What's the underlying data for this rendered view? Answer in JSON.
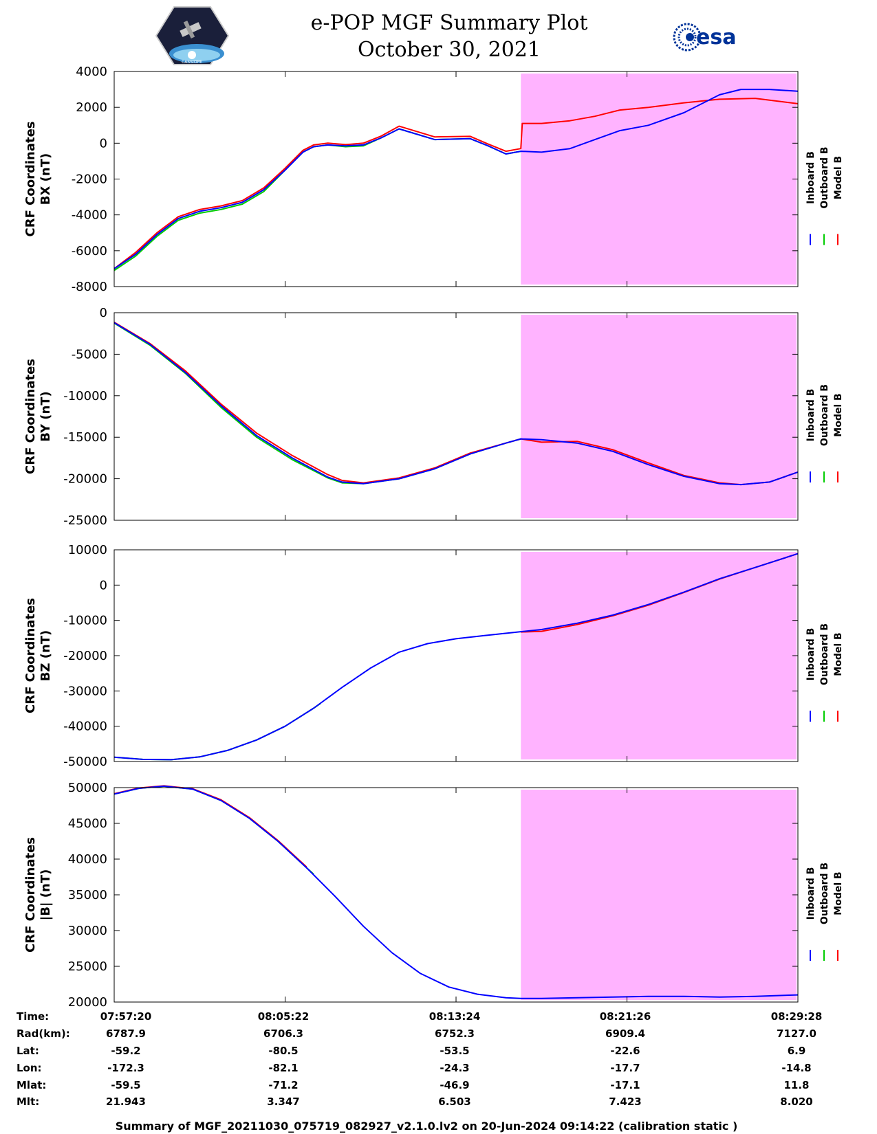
{
  "header": {
    "title": "e-POP MGF Summary Plot",
    "date": "October 30, 2021",
    "logo_left_text": "CASSIOPE",
    "logo_right_text": "esa"
  },
  "colors": {
    "inboard": "#0000ff",
    "outboard": "#00cc00",
    "model": "#ff0000",
    "calibration_shade": "#ffb3ff"
  },
  "chart_data": [
    {
      "type": "line",
      "ylabel": [
        "CRF Coordinates",
        "BX (nT)"
      ],
      "ylim": [
        -8000,
        4000
      ],
      "yticks": [
        4000,
        2000,
        0,
        -2000,
        -4000,
        -6000,
        -8000
      ],
      "xlim": [
        0,
        1920
      ],
      "shaded_x": [
        1142,
        1920
      ],
      "legend": [
        "Inboard B",
        "Outboard B",
        "Model B"
      ],
      "series": [
        {
          "name": "Inboard B",
          "x": [
            0,
            60,
            120,
            180,
            240,
            300,
            360,
            420,
            480,
            530,
            560,
            600,
            650,
            700,
            750,
            800,
            900,
            1000,
            1050,
            1100,
            1142,
            1200,
            1280,
            1350,
            1420,
            1500,
            1600,
            1700,
            1760,
            1840,
            1920
          ],
          "y": [
            -7000,
            -6200,
            -5100,
            -4200,
            -3800,
            -3600,
            -3300,
            -2600,
            -1500,
            -500,
            -200,
            -100,
            -150,
            -100,
            300,
            800,
            200,
            250,
            -150,
            -600,
            -450,
            -500,
            -300,
            200,
            700,
            1000,
            1700,
            2700,
            3000,
            3000,
            2900
          ]
        },
        {
          "name": "Outboard B",
          "x": [
            0,
            60,
            120,
            180,
            240,
            300,
            360,
            420,
            480,
            530,
            560,
            600,
            650,
            700,
            750,
            800,
            900,
            1000,
            1050,
            1100,
            1142
          ],
          "y": [
            -7100,
            -6300,
            -5200,
            -4300,
            -3900,
            -3700,
            -3400,
            -2700,
            -1500,
            -500,
            -200,
            -100,
            -200,
            -150,
            300,
            800,
            200,
            250,
            -150,
            -600,
            -450
          ]
        },
        {
          "name": "Model B",
          "x": [
            0,
            60,
            120,
            180,
            240,
            300,
            360,
            420,
            480,
            530,
            560,
            600,
            650,
            700,
            750,
            800,
            900,
            1000,
            1050,
            1100,
            1142,
            1146,
            1200,
            1280,
            1350,
            1420,
            1500,
            1600,
            1700,
            1800,
            1920
          ],
          "y": [
            -7000,
            -6100,
            -5000,
            -4100,
            -3700,
            -3500,
            -3200,
            -2500,
            -1400,
            -400,
            -100,
            0,
            -80,
            0,
            400,
            950,
            350,
            380,
            -50,
            -450,
            -300,
            1100,
            1100,
            1250,
            1500,
            1850,
            2000,
            2250,
            2450,
            2500,
            2200
          ]
        }
      ]
    },
    {
      "type": "line",
      "ylabel": [
        "CRF Coordinates",
        "BY (nT)"
      ],
      "ylim": [
        -25000,
        0
      ],
      "yticks": [
        0,
        -5000,
        -10000,
        -15000,
        -20000,
        -25000
      ],
      "xlim": [
        0,
        1920
      ],
      "shaded_x": [
        1142,
        1920
      ],
      "legend": [
        "Inboard B",
        "Outboard B",
        "Model B"
      ],
      "series": [
        {
          "name": "Inboard B",
          "x": [
            0,
            100,
            200,
            300,
            400,
            500,
            600,
            640,
            700,
            800,
            900,
            1000,
            1100,
            1142,
            1200,
            1300,
            1400,
            1500,
            1600,
            1700,
            1760,
            1840,
            1920
          ],
          "y": [
            -1200,
            -3800,
            -7200,
            -11200,
            -14800,
            -17500,
            -19800,
            -20400,
            -20600,
            -20000,
            -18800,
            -17000,
            -15700,
            -15200,
            -15300,
            -15700,
            -16700,
            -18300,
            -19700,
            -20600,
            -20700,
            -20400,
            -19200
          ]
        },
        {
          "name": "Outboard B",
          "x": [
            0,
            100,
            200,
            300,
            400,
            500,
            600,
            640,
            700,
            800,
            900,
            1000,
            1100,
            1142
          ],
          "y": [
            -1250,
            -3900,
            -7300,
            -11400,
            -15000,
            -17700,
            -19900,
            -20500,
            -20600,
            -20000,
            -18800,
            -17000,
            -15700,
            -15200
          ]
        },
        {
          "name": "Model B",
          "x": [
            0,
            100,
            200,
            300,
            400,
            500,
            600,
            640,
            700,
            800,
            900,
            1000,
            1100,
            1142,
            1200,
            1300,
            1400,
            1500,
            1600,
            1700,
            1760,
            1840,
            1920
          ],
          "y": [
            -1150,
            -3700,
            -7000,
            -11000,
            -14500,
            -17200,
            -19500,
            -20200,
            -20500,
            -19900,
            -18700,
            -16900,
            -15700,
            -15200,
            -15600,
            -15500,
            -16500,
            -18100,
            -19600,
            -20500,
            -20700,
            -20400,
            -19200
          ]
        }
      ]
    },
    {
      "type": "line",
      "ylabel": [
        "CRF Coordinates",
        "BZ (nT)"
      ],
      "ylim": [
        -50000,
        10000
      ],
      "yticks": [
        10000,
        0,
        -10000,
        -20000,
        -30000,
        -40000,
        -50000
      ],
      "xlim": [
        0,
        1920
      ],
      "shaded_x": [
        1142,
        1920
      ],
      "legend": [
        "Inboard B",
        "Outboard B",
        "Model B"
      ],
      "series": [
        {
          "name": "Inboard B",
          "x": [
            0,
            80,
            160,
            240,
            320,
            400,
            480,
            560,
            640,
            720,
            800,
            880,
            960,
            1040,
            1142,
            1200,
            1300,
            1400,
            1500,
            1600,
            1700,
            1800,
            1920
          ],
          "y": [
            -48800,
            -49400,
            -49500,
            -48700,
            -46800,
            -43900,
            -40000,
            -34900,
            -29000,
            -23500,
            -19000,
            -16600,
            -15200,
            -14300,
            -13200,
            -12600,
            -10800,
            -8500,
            -5500,
            -2000,
            1800,
            5000,
            8900
          ]
        },
        {
          "name": "Outboard B",
          "x": [
            0,
            80,
            160,
            240,
            320,
            400,
            480,
            560,
            580
          ],
          "y": [
            -48800,
            -49400,
            -49500,
            -48700,
            -46800,
            -43900,
            -40000,
            -34900,
            -33500
          ]
        },
        {
          "name": "Model B",
          "x": [
            1142,
            1200,
            1300,
            1400,
            1500,
            1600,
            1700,
            1800,
            1920
          ],
          "y": [
            -13300,
            -13100,
            -11200,
            -8700,
            -5700,
            -2100,
            1700,
            5000,
            8900
          ]
        }
      ]
    },
    {
      "type": "line",
      "ylabel": [
        "CRF Coordinates",
        "|B| (nT)"
      ],
      "ylim": [
        20000,
        50000
      ],
      "yticks": [
        50000,
        45000,
        40000,
        35000,
        30000,
        25000,
        20000
      ],
      "xlim": [
        0,
        1920
      ],
      "shaded_x": [
        1142,
        1920
      ],
      "legend": [
        "Inboard B",
        "Outboard B",
        "Model B"
      ],
      "series": [
        {
          "name": "Inboard B",
          "x": [
            0,
            70,
            140,
            220,
            300,
            380,
            460,
            540,
            620,
            700,
            780,
            860,
            940,
            1020,
            1100,
            1142,
            1200,
            1300,
            1400,
            1500,
            1600,
            1700,
            1800,
            1920
          ],
          "y": [
            49100,
            49900,
            50200,
            49800,
            48200,
            45700,
            42500,
            38800,
            34800,
            30600,
            26900,
            24000,
            22100,
            21100,
            20600,
            20500,
            20500,
            20600,
            20700,
            20800,
            20800,
            20700,
            20800,
            21000
          ]
        },
        {
          "name": "Outboard B",
          "x": [
            0,
            70,
            140,
            220,
            300,
            380,
            460,
            540,
            560
          ],
          "y": [
            49100,
            49900,
            50200,
            49800,
            48200,
            45700,
            42500,
            38800,
            37900
          ]
        },
        {
          "name": "Model B",
          "x": [
            0,
            70,
            140,
            220,
            300,
            380,
            460,
            540
          ],
          "y": [
            49150,
            49950,
            50250,
            49850,
            48300,
            45800,
            42600,
            38900
          ]
        }
      ]
    }
  ],
  "table": {
    "row_labels": [
      "Time:",
      "Rad(km):",
      "Lat:",
      "Lon:",
      "Mlat:",
      "Mlt:"
    ],
    "columns": [
      [
        "07:57:20",
        "6787.9",
        "-59.2",
        "-172.3",
        "-59.5",
        "21.943"
      ],
      [
        "08:05:22",
        "6706.3",
        "-80.5",
        "-82.1",
        "-71.2",
        "3.347"
      ],
      [
        "08:13:24",
        "6752.3",
        "-53.5",
        "-24.3",
        "-46.9",
        "6.503"
      ],
      [
        "08:21:26",
        "6909.4",
        "-22.6",
        "-17.7",
        "-17.1",
        "7.423"
      ],
      [
        "08:29:28",
        "7127.0",
        "6.9",
        "-14.8",
        "11.8",
        "8.020"
      ]
    ]
  },
  "footer": "Summary of MGF_20211030_075719_082927_v2.1.0.lv2 on 20-Jun-2024 09:14:22 (calibration static )"
}
